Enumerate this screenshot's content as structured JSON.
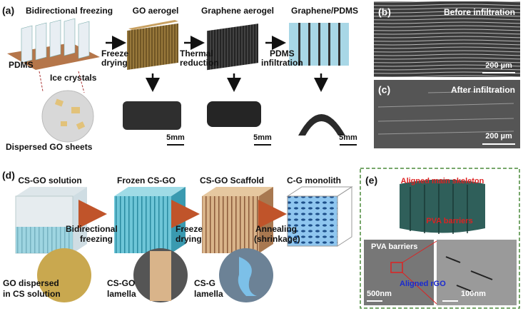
{
  "panel_a": {
    "label": "(a)",
    "title": "Bidirectional freezing",
    "setup_labels": [
      "PDMS",
      "Ice crystals"
    ],
    "inset_caption": "Dispersed GO sheets",
    "stages": [
      "GO aerogel",
      "Graphene aerogel",
      "Graphene/PDMS"
    ],
    "steps": [
      [
        "Freeze",
        "drying"
      ],
      [
        "Thermal",
        "reduction"
      ],
      [
        "PDMS",
        "infiltration"
      ]
    ],
    "scale_bars": [
      "5mm",
      "5mm",
      "5mm"
    ]
  },
  "panel_b": {
    "label": "(b)",
    "caption": "Before infiltration",
    "scale_bar": "200 µm"
  },
  "panel_c": {
    "label": "(c)",
    "caption": "After infiltration",
    "scale_bar": "200 µm"
  },
  "panel_d": {
    "label": "(d)",
    "stages": [
      "CS-GO solution",
      "Frozen CS-GO",
      "CS-GO Scaffold",
      "C-G monolith"
    ],
    "steps": [
      [
        "Bidirectional",
        "freezing"
      ],
      [
        "Freeze",
        "drying"
      ],
      [
        "Annealing",
        "(shrinkage)"
      ]
    ],
    "insets": [
      [
        "GO dispersed",
        "in CS solution"
      ],
      [
        "CS-GO",
        "lamella"
      ],
      [
        "CS-G",
        "lamella"
      ]
    ]
  },
  "panel_e": {
    "label": "(e)",
    "skeleton_label": "Aligned main skeleton",
    "barrier_label": "PVA barriers",
    "image_labels": [
      "PVA barriers",
      "Aligned rGO"
    ],
    "scale_bars": [
      "500nm",
      "100nm"
    ]
  }
}
